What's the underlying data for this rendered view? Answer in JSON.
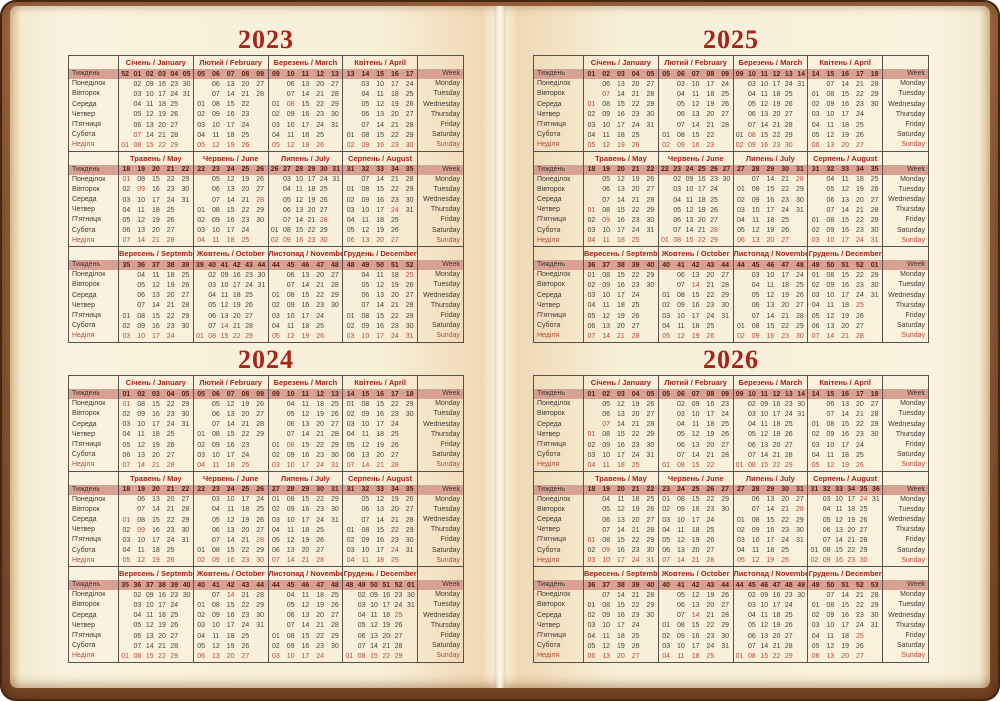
{
  "colors": {
    "accent-red": "#a8241b",
    "holiday-red": "#b44b3c",
    "week-band-bg": "#d8a193",
    "week-num": "#5a2019",
    "ink": "#45423d",
    "label-ink": "#3c3933",
    "line": "#56514b",
    "page-cream": "#f8efd9",
    "cover-brown": "#8d5836"
  },
  "labels": {
    "uk": [
      "Тиждень",
      "Понеділок",
      "Вівторок",
      "Середа",
      "Четвер",
      "П'ятниця",
      "Субота",
      "Неділя"
    ],
    "en": [
      "Week",
      "Monday",
      "Tuesday",
      "Wednesday",
      "Thursday",
      "Friday",
      "Saturday",
      "Sunday"
    ]
  },
  "years": [
    {
      "year": "2023",
      "months": [
        {
          "uk": "Січень",
          "en": "January",
          "weeks": "52 01 02 03 04 05",
          "red": [
            "07"
          ],
          "rows": [
            ". 02 09 16 23 30",
            ". 03 10 17 24 31",
            ". 04 11 18 25 .",
            ". 05 12 19 26 .",
            ". 06 13 20 27 .",
            ". 07 14 21 28 .",
            "01 08 15 22 29 ."
          ]
        },
        {
          "uk": "Лютий",
          "en": "February",
          "weeks": "05 06 07 08 09",
          "red": [],
          "rows": [
            ". 06 13 20 27",
            ". 07 14 21 28",
            "01 08 15 22 .",
            "02 09 16 23 .",
            "03 10 17 24 .",
            "04 11 18 25 .",
            "05 12 19 26 ."
          ]
        },
        {
          "uk": "Березень",
          "en": "March",
          "weeks": "09 10 11 12 13",
          "red": [
            "08"
          ],
          "rows": [
            ". 06 13 20 27",
            ". 07 14 21 28",
            "01 08 15 22 29",
            "02 09 16 23 30",
            "03 10 17 24 31",
            "04 11 18 25 .",
            "05 12 19 26 ."
          ]
        },
        {
          "uk": "Квітень",
          "en": "April",
          "weeks": "13 14 15 16 17",
          "red": [],
          "rows": [
            ". 03 10 17 24",
            ". 04 11 18 25",
            ". 05 12 19 26",
            ". 06 13 20 27",
            ". 07 14 21 28",
            "01 08 15 22 29",
            "02 09 16 23 30"
          ]
        },
        {
          "uk": "Травень",
          "en": "May",
          "weeks": "18 19 20 21 22",
          "red": [
            "01",
            "09"
          ],
          "rows": [
            "01 08 15 22 29",
            "02 09 16 23 30",
            "03 10 17 24 31",
            "04 11 18 25 .",
            "05 12 19 26 .",
            "06 13 20 27 .",
            "07 14 21 28 ."
          ]
        },
        {
          "uk": "Червень",
          "en": "June",
          "weeks": "22 23 24 25 26",
          "red": [
            "28"
          ],
          "rows": [
            ". 05 12 19 26",
            ". 06 13 20 27",
            ". 07 14 21 28",
            "01 08 15 22 29",
            "02 09 16 23 30",
            "03 10 17 24 .",
            "04 11 18 25 ."
          ]
        },
        {
          "uk": "Липень",
          "en": "July",
          "weeks": "26 27 28 29 30 31",
          "red": [
            "28"
          ],
          "rows": [
            ". 03 10 17 24 31",
            ". 04 11 18 25 .",
            ". 05 12 19 26 .",
            ". 06 13 20 27 .",
            ". 07 14 21 28 .",
            "01 08 15 22 29 .",
            "02 09 16 23 30 ."
          ]
        },
        {
          "uk": "Серпень",
          "en": "August",
          "weeks": "31 32 33 34 35",
          "red": [
            "24"
          ],
          "rows": [
            ". 07 14 21 28",
            "01 08 15 22 29",
            "02 09 16 23 30",
            "03 10 17 24 31",
            "04 11 18 25 .",
            "05 12 19 26 .",
            "06 13 20 27 ."
          ]
        },
        {
          "uk": "Вересень",
          "en": "September",
          "weeks": "35 36 37 38 39",
          "red": [],
          "rows": [
            ". 04 11 18 25",
            ". 05 12 19 26",
            ". 06 13 20 27",
            ". 07 14 21 28",
            "01 08 15 22 29",
            "02 09 16 23 30",
            "03 10 17 24 ."
          ]
        },
        {
          "uk": "Жовтень",
          "en": "October",
          "weeks": "39 40 41 42 43 44",
          "red": [
            "14"
          ],
          "rows": [
            ". 02 09 16 23 30",
            ". 03 10 17 24 31",
            ". 04 11 18 25 .",
            ". 05 12 19 26 .",
            ". 06 13 20 27 .",
            ". 07 14 21 28 .",
            "01 08 15 22 29 ."
          ]
        },
        {
          "uk": "Листопад",
          "en": "November",
          "weeks": "44 45 46 47 48",
          "red": [],
          "rows": [
            ". 06 13 20 27",
            ". 07 14 21 28",
            "01 08 15 22 29",
            "02 09 16 23 30",
            "03 10 17 24 .",
            "04 11 18 25 .",
            "05 12 19 26 ."
          ]
        },
        {
          "uk": "Грудень",
          "en": "December",
          "weeks": "48 49 50 51 52",
          "red": [
            "25"
          ],
          "rows": [
            ". 04 11 18 25",
            ". 05 12 19 26",
            ". 06 13 20 27",
            ". 07 14 21 28",
            "01 08 15 22 29",
            "02 09 16 23 30",
            "03 10 17 24 31"
          ]
        }
      ]
    },
    {
      "year": "2024",
      "months": [
        {
          "uk": "Січень",
          "en": "January",
          "weeks": "01 02 03 04 05",
          "red": [
            "01"
          ],
          "rows": [
            "01 08 15 22 29",
            "02 09 16 23 30",
            "03 10 17 24 31",
            "04 11 18 25 .",
            "05 12 19 26 .",
            "06 13 20 27 .",
            "07 14 21 28 ."
          ]
        },
        {
          "uk": "Лютий",
          "en": "February",
          "weeks": "05 06 07 08 09",
          "red": [],
          "rows": [
            ". 05 12 19 26",
            ". 06 13 20 27",
            ". 07 14 21 28",
            "01 08 15 22 29",
            "02 09 16 23 .",
            "03 10 17 24 .",
            "04 11 18 25 ."
          ]
        },
        {
          "uk": "Березень",
          "en": "March",
          "weeks": "09 10 11 12 13",
          "red": [
            "08"
          ],
          "rows": [
            ". 04 11 18 25",
            ". 05 12 19 26",
            ". 06 13 20 27",
            ". 07 14 21 28",
            "01 08 15 22 29",
            "02 09 16 23 30",
            "03 10 17 24 31"
          ]
        },
        {
          "uk": "Квітень",
          "en": "April",
          "weeks": "14 15 16 17 18",
          "red": [],
          "rows": [
            "01 08 15 22 29",
            "02 09 16 23 30",
            "03 10 17 24 .",
            "04 11 18 25 .",
            "05 12 19 26 .",
            "06 13 20 27 .",
            "07 14 21 28 ."
          ]
        },
        {
          "uk": "Травень",
          "en": "May",
          "weeks": "18 19 20 21 22",
          "red": [
            "01",
            "09"
          ],
          "rows": [
            ". 06 13 20 27",
            ". 07 14 21 28",
            "01 08 15 22 29",
            "02 09 16 23 30",
            "03 10 17 24 31",
            "04 11 18 25 .",
            "05 12 19 26 ."
          ]
        },
        {
          "uk": "Червень",
          "en": "June",
          "weeks": "22 23 24 25 26",
          "red": [
            "28"
          ],
          "rows": [
            ". 03 10 17 24",
            ". 04 11 18 25",
            ". 05 12 19 26",
            ". 06 13 20 27",
            ". 07 14 21 28",
            "01 08 15 22 29",
            "02 09 16 23 30"
          ]
        },
        {
          "uk": "Липень",
          "en": "July",
          "weeks": "27 28 29 30 31",
          "red": [],
          "rows": [
            "01 08 15 22 29",
            "02 09 16 23 30",
            "03 10 17 24 31",
            "04 11 18 25 .",
            "05 12 19 26 .",
            "06 13 20 27 .",
            "07 14 21 28 ."
          ]
        },
        {
          "uk": "Серпень",
          "en": "August",
          "weeks": "31 32 33 34 35",
          "red": [
            "24"
          ],
          "rows": [
            ". 05 12 19 26",
            ". 06 13 20 27",
            ". 07 14 21 28",
            "01 08 15 22 29",
            "02 09 16 23 30",
            "03 10 17 24 31",
            "04 11 18 25 ."
          ]
        },
        {
          "uk": "Вересень",
          "en": "September",
          "weeks": "35 36 37 38 39 40",
          "red": [],
          "rows": [
            ". 02 09 16 23 30",
            ". 03 10 17 24 .",
            ". 04 11 18 25 .",
            ". 05 12 19 26 .",
            ". 06 13 20 27 .",
            ". 07 14 21 28 .",
            "01 08 15 22 29 ."
          ]
        },
        {
          "uk": "Жовтень",
          "en": "October",
          "weeks": "40 41 42 43 44",
          "red": [
            "14"
          ],
          "rows": [
            ". 07 14 21 28",
            "01 08 15 22 29",
            "02 09 16 23 30",
            "03 10 17 24 31",
            "04 11 18 25 .",
            "05 12 19 26 .",
            "06 13 20 27 ."
          ]
        },
        {
          "uk": "Листопад",
          "en": "November",
          "weeks": "44 45 46 47 48",
          "red": [],
          "rows": [
            ". 04 11 18 25",
            ". 05 12 19 26",
            ". 06 13 20 27",
            ". 07 14 21 28",
            "01 08 15 22 29",
            "02 09 16 23 30",
            "03 10 17 24 ."
          ]
        },
        {
          "uk": "Грудень",
          "en": "December",
          "weeks": "48 49 50 51 52 01",
          "red": [
            "25"
          ],
          "rows": [
            ". 02 09 16 23 30",
            ". 03 10 17 24 31",
            ". 04 11 18 25 .",
            ". 05 12 19 26 .",
            ". 06 13 20 27 .",
            ". 07 14 21 28 .",
            "01 08 15 22 29 ."
          ]
        }
      ]
    },
    {
      "year": "2025",
      "months": [
        {
          "uk": "Січень",
          "en": "January",
          "weeks": "01 02 03 04 05",
          "red": [
            "01",
            "07"
          ],
          "rows": [
            ". 06 13 20 27",
            ". 07 14 21 28",
            "01 08 15 22 29",
            "02 09 16 23 30",
            "03 10 17 24 31",
            "04 11 18 25 .",
            "05 12 19 26 ."
          ]
        },
        {
          "uk": "Лютий",
          "en": "February",
          "weeks": "05 06 07 08 09",
          "red": [],
          "rows": [
            ". 03 10 17 24",
            ". 04 11 18 25",
            ". 05 12 19 26",
            ". 06 13 20 27",
            ". 07 14 21 28",
            "01 08 15 22 .",
            "02 09 16 23 ."
          ]
        },
        {
          "uk": "Березень",
          "en": "March",
          "weeks": "09 10 11 12 13 14",
          "red": [
            "08"
          ],
          "rows": [
            ". 03 10 17 24 31",
            ". 04 11 18 25 .",
            ". 05 12 19 26 .",
            ". 06 13 20 27 .",
            ". 07 14 21 28 .",
            "01 08 15 22 29 .",
            "02 09 16 23 30 ."
          ]
        },
        {
          "uk": "Квітень",
          "en": "April",
          "weeks": "14 15 16 17 18",
          "red": [],
          "rows": [
            ". 07 14 21 28",
            "01 08 15 22 29",
            "02 09 16 23 30",
            "03 10 17 24 .",
            "04 11 18 25 .",
            "05 12 19 26 .",
            "06 13 20 27 ."
          ]
        },
        {
          "uk": "Травень",
          "en": "May",
          "weeks": "18 19 20 21 22",
          "red": [
            "01",
            "09"
          ],
          "rows": [
            ". 05 12 19 26",
            ". 06 13 20 27",
            ". 07 14 21 28",
            "01 08 15 22 29",
            "02 09 16 23 30",
            "03 10 17 24 31",
            "04 11 18 25 ."
          ]
        },
        {
          "uk": "Червень",
          "en": "June",
          "weeks": "22 23 24 25 26 27",
          "red": [
            "28"
          ],
          "rows": [
            ". 02 09 16 23 30",
            ". 03 10 17 24 .",
            ". 04 11 18 25 .",
            ". 05 12 19 26 .",
            ". 06 13 20 27 .",
            ". 07 14 21 28 .",
            "01 08 15 22 29 ."
          ]
        },
        {
          "uk": "Липень",
          "en": "July",
          "weeks": "27 28 29 30 31",
          "red": [
            "28"
          ],
          "rows": [
            ". 07 14 21 28",
            "01 08 15 22 29",
            "02 09 16 23 30",
            "03 10 17 24 31",
            "04 11 18 25 .",
            "05 12 19 26 .",
            "06 13 20 27 ."
          ]
        },
        {
          "uk": "Серпень",
          "en": "August",
          "weeks": "31 32 33 34 35",
          "red": [
            "24"
          ],
          "rows": [
            ". 04 11 18 25",
            ". 05 12 19 26",
            ". 06 13 20 27",
            ". 07 14 21 28",
            "01 08 15 22 29",
            "02 09 16 23 30",
            "03 10 17 24 31"
          ]
        },
        {
          "uk": "Вересень",
          "en": "September",
          "weeks": "36 37 38 39 40",
          "red": [],
          "rows": [
            "01 08 15 22 29",
            "02 09 16 23 30",
            "03 10 17 24 .",
            "04 11 18 25 .",
            "05 12 19 26 .",
            "06 13 20 27 .",
            "07 14 21 28 ."
          ]
        },
        {
          "uk": "Жовтень",
          "en": "October",
          "weeks": "40 41 42 43 44",
          "red": [
            "14"
          ],
          "rows": [
            ". 06 13 20 27",
            ". 07 14 21 28",
            "01 08 15 22 29",
            "02 09 16 23 30",
            "03 10 17 24 31",
            "04 11 18 25 .",
            "05 12 19 26 ."
          ]
        },
        {
          "uk": "Листопад",
          "en": "November",
          "weeks": "44 45 46 47 48",
          "red": [],
          "rows": [
            ". 03 10 17 24",
            ". 04 11 18 25",
            ". 05 12 19 26",
            ". 06 13 20 27",
            ". 07 14 21 28",
            "01 08 15 22 29",
            "02 09 16 23 30"
          ]
        },
        {
          "uk": "Грудень",
          "en": "December",
          "weeks": "49 50 51 52 01",
          "red": [
            "25"
          ],
          "rows": [
            "01 08 15 22 29",
            "02 09 16 23 30",
            "03 10 17 24 31",
            "04 11 18 25 .",
            "05 12 19 26 .",
            "06 13 20 27 .",
            "07 14 21 28 ."
          ]
        }
      ]
    },
    {
      "year": "2026",
      "months": [
        {
          "uk": "Січень",
          "en": "January",
          "weeks": "01 02 03 04 05",
          "red": [
            "01",
            "07"
          ],
          "rows": [
            ". 05 12 19 26",
            ". 06 13 20 27",
            ". 07 14 21 28",
            "01 08 15 22 29",
            "02 09 16 23 30",
            "03 10 17 24 31",
            "04 11 18 25 ."
          ]
        },
        {
          "uk": "Лютий",
          "en": "February",
          "weeks": "05 06 07 08 09",
          "red": [],
          "rows": [
            ". 02 09 16 23",
            ". 03 10 17 24",
            ". 04 11 18 25",
            ". 05 12 19 26",
            ". 06 13 20 27",
            ". 07 14 21 28",
            "01 08 15 22 ."
          ]
        },
        {
          "uk": "Березень",
          "en": "March",
          "weeks": "09 10 11 12 13 14",
          "red": [
            "08"
          ],
          "rows": [
            ". 02 09 16 23 30",
            ". 03 10 17 24 31",
            ". 04 11 18 25 .",
            ". 05 12 19 26 .",
            ". 06 13 20 27 .",
            ". 07 14 21 28 .",
            "01 08 15 22 29 ."
          ]
        },
        {
          "uk": "Квітень",
          "en": "April",
          "weeks": "14 15 16 17 18",
          "red": [],
          "rows": [
            ". 06 13 20 27",
            ". 07 14 21 28",
            "01 08 15 22 29",
            "02 09 16 23 30",
            "03 10 17 24 .",
            "04 11 18 25 .",
            "05 12 19 26 ."
          ]
        },
        {
          "uk": "Травень",
          "en": "May",
          "weeks": "18 19 20 21 22",
          "red": [
            "01",
            "09"
          ],
          "rows": [
            ". 04 11 18 25",
            ". 05 12 19 26",
            ". 06 13 20 27",
            ". 07 14 21 28",
            "01 08 15 22 29",
            "02 09 16 23 30",
            "03 10 17 24 31"
          ]
        },
        {
          "uk": "Червень",
          "en": "June",
          "weeks": "23 24 25 26 27",
          "red": [
            "28"
          ],
          "rows": [
            "01 08 15 22 29",
            "02 09 16 23 30",
            "03 10 17 24 .",
            "04 11 18 25 .",
            "05 12 19 26 .",
            "06 13 20 27 .",
            "07 14 21 28 ."
          ]
        },
        {
          "uk": "Липень",
          "en": "July",
          "weeks": "27 28 29 30 31",
          "red": [
            "28"
          ],
          "rows": [
            ". 06 13 20 27",
            ". 07 14 21 28",
            "01 08 15 22 29",
            "02 09 16 23 30",
            "03 10 17 24 31",
            "04 11 18 25 .",
            "05 12 19 26 ."
          ]
        },
        {
          "uk": "Серпень",
          "en": "August",
          "weeks": "31 32 33 34 35 36",
          "red": [
            "24"
          ],
          "rows": [
            ". 03 10 17 24 31",
            ". 04 11 18 25 .",
            ". 05 12 19 26 .",
            ". 06 13 20 27 .",
            ". 07 14 21 28 .",
            "01 08 15 22 29 .",
            "02 09 16 23 30 ."
          ]
        },
        {
          "uk": "Вересень",
          "en": "September",
          "weeks": "36 37 38 39 40",
          "red": [],
          "rows": [
            ". 07 14 21 28",
            "01 08 15 22 29",
            "02 09 16 23 30",
            "03 10 17 24 .",
            "04 11 18 25 .",
            "05 12 19 26 .",
            "06 13 20 27 ."
          ]
        },
        {
          "uk": "Жовтень",
          "en": "October",
          "weeks": "40 41 42 43 44",
          "red": [
            "14"
          ],
          "rows": [
            ". 05 12 19 26",
            ". 06 13 20 27",
            ". 07 14 21 28",
            "01 08 15 22 29",
            "02 09 16 23 30",
            "03 10 17 24 31",
            "04 11 18 25 ."
          ]
        },
        {
          "uk": "Листопад",
          "en": "November",
          "weeks": "44 45 46 47 48 49",
          "red": [],
          "rows": [
            ". 02 09 16 23 30",
            ". 03 10 17 24 .",
            ". 04 11 18 25 .",
            ". 05 12 19 26 .",
            ". 06 13 20 27 .",
            ". 07 14 21 28 .",
            "01 08 15 22 29 ."
          ]
        },
        {
          "uk": "Грудень",
          "en": "December",
          "weeks": "49 50 51 52 53",
          "red": [
            "25"
          ],
          "rows": [
            ". 07 14 21 28",
            "01 08 15 22 29",
            "02 09 16 23 30",
            "03 10 17 24 31",
            "04 11 18 25 .",
            "05 12 19 26 .",
            "06 13 20 27 ."
          ]
        }
      ]
    }
  ]
}
